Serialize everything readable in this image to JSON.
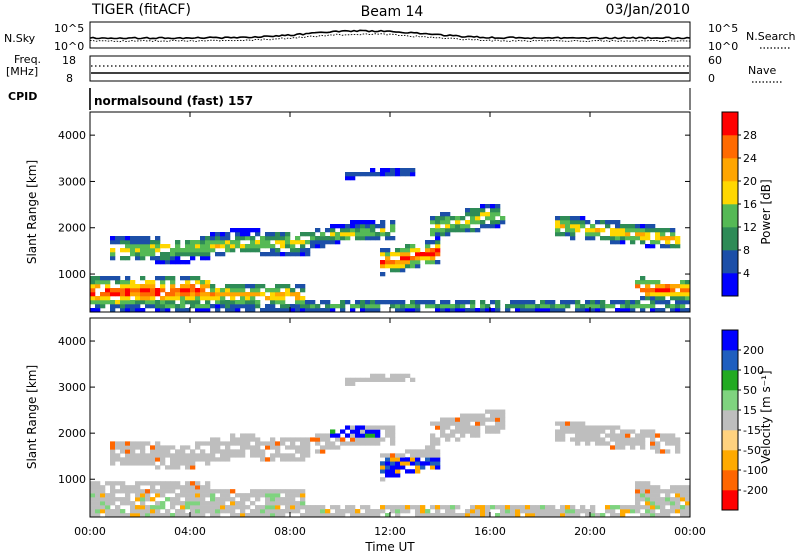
{
  "header": {
    "left": "TIGER (fitACF)",
    "center": "Beam 14",
    "right": "03/Jan/2010"
  },
  "panels": {
    "nsky": {
      "label": "N.Sky",
      "y_ticks": [
        "10^5",
        "10^0"
      ],
      "right_ticks": [
        "10^5",
        "10^0"
      ],
      "right_label": "N.Search"
    },
    "freq": {
      "label_line1": "Freq.",
      "label_line2": "[MHz]",
      "y_ticks": [
        "18",
        "8"
      ],
      "right_ticks": [
        "60",
        "0"
      ],
      "right_label": "Nave"
    },
    "cpid": {
      "label": "CPID",
      "text": "normalsound (fast) 157"
    }
  },
  "colors": {
    "power": [
      "#0000ff",
      "#1c4fa8",
      "#2e8b57",
      "#55b955",
      "#ffd700",
      "#ffa500",
      "#ff6a00",
      "#ff0000"
    ],
    "velocity": [
      "#ff0000",
      "#ff6600",
      "#ffaa00",
      "#ffd27f",
      "#bebebe",
      "#7fd37f",
      "#22aa22",
      "#1f5fbf",
      "#0000ff"
    ],
    "gray": "#bebebe"
  },
  "chart_data": [
    {
      "type": "heatmap",
      "name": "power",
      "ylabel": "Slant Range [km]",
      "y_ticks": [
        1000,
        2000,
        3000,
        4000
      ],
      "ylim": [
        180,
        4500
      ],
      "x_ticks": [
        "00:00",
        "04:00",
        "08:00",
        "12:00",
        "16:00",
        "20:00",
        "00:00"
      ],
      "xlim_hours": [
        0,
        24
      ],
      "colorbar": {
        "label": "Power [dB]",
        "ticks": [
          4,
          8,
          12,
          16,
          20,
          24,
          28
        ],
        "range": [
          0,
          32
        ]
      }
    },
    {
      "type": "heatmap",
      "name": "velocity",
      "ylabel": "Slant Range [km]",
      "y_ticks": [
        1000,
        2000,
        3000,
        4000
      ],
      "ylim": [
        180,
        4500
      ],
      "x_ticks": [
        "00:00",
        "04:00",
        "08:00",
        "12:00",
        "16:00",
        "20:00",
        "00:00"
      ],
      "xlabel": "Time UT",
      "xlim_hours": [
        0,
        24
      ],
      "colorbar": {
        "label": "Velocity [m s⁻¹]",
        "ticks": [
          "-200",
          "-100",
          "-50",
          "-15",
          "15",
          "50",
          "100",
          "200"
        ],
        "range": [
          -250,
          250
        ]
      }
    }
  ]
}
